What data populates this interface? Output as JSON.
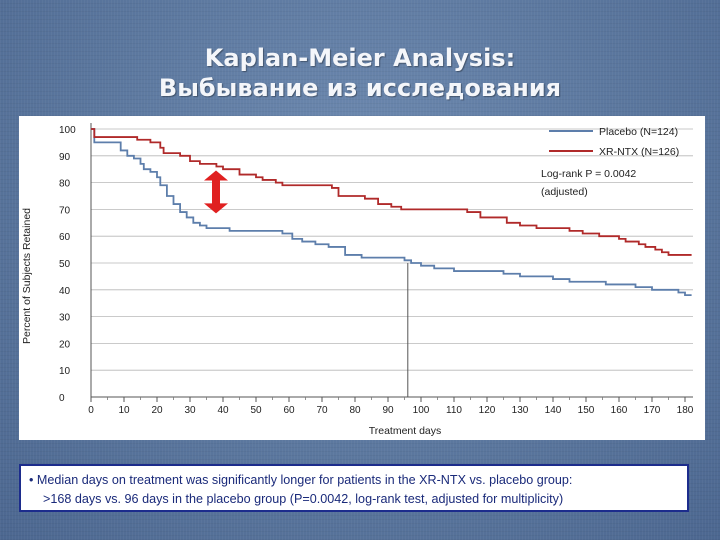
{
  "slide": {
    "title_line1": "Kaplan-Meier Analysis:",
    "title_line2": "Выбывание из исследования"
  },
  "note": {
    "line1": "• Median days on treatment was significantly longer for patients in the XR-NTX vs. placebo group:",
    "line2": ">168 days vs. 96 days in the placebo group (P=0.0042, log-rank test, adjusted for multiplicity)"
  },
  "colors": {
    "placebo": "#5d7eab",
    "xrntx": "#b02a2a",
    "arrow": "#e02020"
  },
  "chart_data": {
    "type": "line",
    "title": "",
    "xlabel": "Treatment days",
    "ylabel": "Percent of Subjects Retained",
    "xlim": [
      0,
      180
    ],
    "ylim": [
      0,
      100
    ],
    "x_ticks": [
      0,
      10,
      20,
      30,
      40,
      50,
      60,
      70,
      80,
      90,
      100,
      110,
      120,
      130,
      140,
      150,
      160,
      170,
      180
    ],
    "y_ticks": [
      0,
      10,
      20,
      30,
      40,
      50,
      60,
      70,
      80,
      90,
      100
    ],
    "grid": "horizontal",
    "legend_position": "top-right",
    "annotations": [
      "Log-rank P = 0.0042",
      "(adjusted)"
    ],
    "median_marker": {
      "x": 96,
      "y": 50
    },
    "series": [
      {
        "name": "Placebo (N=124)",
        "points": [
          [
            0,
            100
          ],
          [
            1,
            95
          ],
          [
            8,
            95
          ],
          [
            9,
            92
          ],
          [
            11,
            90
          ],
          [
            13,
            89
          ],
          [
            15,
            87
          ],
          [
            16,
            85
          ],
          [
            18,
            84
          ],
          [
            20,
            82
          ],
          [
            21,
            79
          ],
          [
            23,
            75
          ],
          [
            25,
            72
          ],
          [
            27,
            69
          ],
          [
            29,
            67
          ],
          [
            31,
            65
          ],
          [
            33,
            64
          ],
          [
            35,
            63
          ],
          [
            42,
            62
          ],
          [
            48,
            62
          ],
          [
            53,
            62
          ],
          [
            58,
            61
          ],
          [
            61,
            59
          ],
          [
            64,
            58
          ],
          [
            68,
            57
          ],
          [
            72,
            56
          ],
          [
            77,
            53
          ],
          [
            82,
            52
          ],
          [
            95,
            51
          ],
          [
            97,
            50
          ],
          [
            100,
            49
          ],
          [
            104,
            48
          ],
          [
            110,
            47
          ],
          [
            125,
            46
          ],
          [
            130,
            45
          ],
          [
            140,
            44
          ],
          [
            145,
            43
          ],
          [
            156,
            42
          ],
          [
            165,
            41
          ],
          [
            170,
            40
          ],
          [
            178,
            39
          ],
          [
            180,
            38
          ],
          [
            182,
            38
          ]
        ]
      },
      {
        "name": "XR-NTX (N=126)",
        "points": [
          [
            0,
            100
          ],
          [
            1,
            97
          ],
          [
            11,
            97
          ],
          [
            14,
            96
          ],
          [
            18,
            95
          ],
          [
            21,
            93
          ],
          [
            22,
            91
          ],
          [
            27,
            90
          ],
          [
            30,
            88
          ],
          [
            33,
            87
          ],
          [
            38,
            86
          ],
          [
            40,
            85
          ],
          [
            45,
            83
          ],
          [
            50,
            82
          ],
          [
            52,
            81
          ],
          [
            56,
            80
          ],
          [
            58,
            79
          ],
          [
            73,
            78
          ],
          [
            75,
            75
          ],
          [
            83,
            74
          ],
          [
            87,
            72
          ],
          [
            91,
            71
          ],
          [
            94,
            70
          ],
          [
            112,
            70
          ],
          [
            114,
            69
          ],
          [
            118,
            67
          ],
          [
            126,
            65
          ],
          [
            130,
            64
          ],
          [
            135,
            63
          ],
          [
            145,
            62
          ],
          [
            149,
            61
          ],
          [
            154,
            60
          ],
          [
            160,
            59
          ],
          [
            162,
            58
          ],
          [
            166,
            57
          ],
          [
            168,
            56
          ],
          [
            171,
            55
          ],
          [
            173,
            54
          ],
          [
            175,
            53
          ],
          [
            182,
            53
          ]
        ]
      }
    ]
  }
}
